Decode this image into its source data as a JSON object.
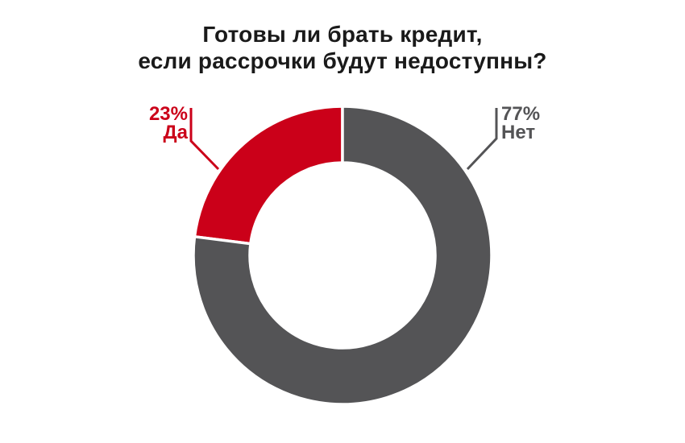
{
  "header": {
    "title_line1": "Готовы ли брать кредит,",
    "title_line2": "если рассрочки будут недоступны?"
  },
  "colors": {
    "title": "#1a1a1a",
    "background": "#ffffff",
    "yes": "#cb0019",
    "no": "#545456",
    "divider": "#ffffff"
  },
  "chart_data": {
    "type": "donut",
    "title": "Готовы ли брать кредит, если рассрочки будут недоступны?",
    "slices": [
      {
        "label": "Да",
        "value": 23,
        "pct_text": "23%",
        "color": "#cb0019"
      },
      {
        "label": "Нет",
        "value": 77,
        "pct_text": "77%",
        "color": "#545456"
      }
    ],
    "start_angle_deg": 90,
    "direction": "counterclockwise",
    "inner_radius_ratio": 0.622,
    "legend_position": "callouts",
    "grid": false
  }
}
